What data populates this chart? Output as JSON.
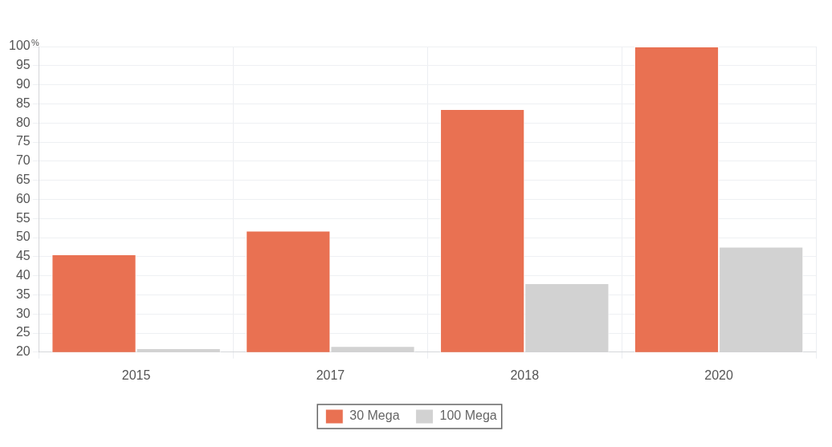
{
  "chart_data": {
    "type": "bar",
    "ylabel": "%",
    "categories": [
      "2015",
      "2017",
      "2018",
      "2020"
    ],
    "series": [
      {
        "name": "30 Mega",
        "color": "#e97152",
        "values": [
          45.6,
          51.8,
          83.6,
          100
        ]
      },
      {
        "name": "100 Mega",
        "color": "#d2d2d2",
        "values": [
          21.0,
          21.6,
          38.0,
          47.6
        ]
      }
    ],
    "ylim": [
      20,
      100
    ],
    "yticks": [
      20,
      25,
      30,
      35,
      40,
      45,
      50,
      55,
      60,
      65,
      70,
      75,
      80,
      85,
      90,
      95,
      100
    ],
    "grid": true,
    "legend": "bottom"
  }
}
